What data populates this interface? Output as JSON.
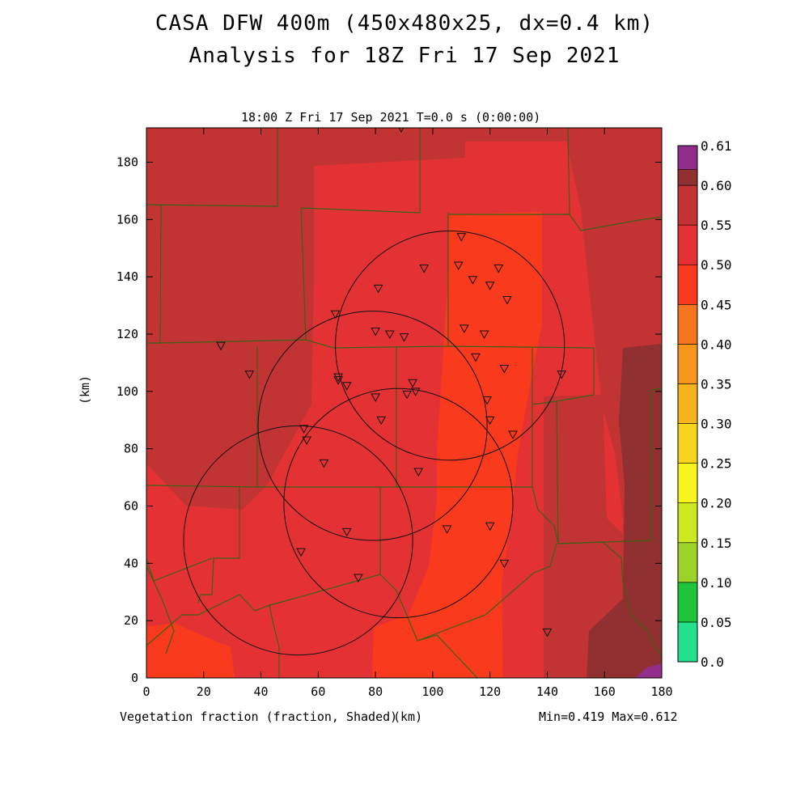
{
  "header": {
    "title_line1": "CASA DFW 400m (450x480x25, dx=0.4 km)",
    "title_line2": "Analysis for 18Z Fri 17 Sep 2021",
    "subtitle": "18:00 Z Fri 17 Sep 2021   T=0.0 s (0:00:00)"
  },
  "footer": {
    "variable_label": "Vegetation fraction (fraction, Shaded)",
    "x_unit": "(km)",
    "minmax": "Min=0.419 Max=0.612"
  },
  "axes": {
    "y_unit": "(km)",
    "x_ticks": [
      "0",
      "20",
      "40",
      "60",
      "80",
      "100",
      "120",
      "140",
      "160",
      "180"
    ],
    "y_ticks": [
      "0",
      "20",
      "40",
      "60",
      "80",
      "100",
      "120",
      "140",
      "160",
      "180"
    ],
    "x_range_km": [
      0,
      180
    ],
    "y_range_km": [
      0,
      192
    ]
  },
  "colorbar": {
    "labels": [
      "0.0",
      "0.05",
      "0.10",
      "0.15",
      "0.20",
      "0.25",
      "0.30",
      "0.35",
      "0.40",
      "0.45",
      "0.50",
      "0.55",
      "0.60",
      "0.61"
    ],
    "colors": [
      "#22e08c",
      "#1ec43c",
      "#9cd22a",
      "#cce820",
      "#f6f61e",
      "#f8d41c",
      "#f6b41c",
      "#f6961c",
      "#f6741e",
      "#fa3a1c",
      "#e43234",
      "#c23434",
      "#903030",
      "#902e8a"
    ]
  },
  "colors": {
    "field_high": "#c23434",
    "field_mid": "#e43234",
    "field_low": "#fa3a1c",
    "field_max": "#903030",
    "county_lines": "#3c6014"
  },
  "radar_circles_km": [
    {
      "cx": 79,
      "cy": 88,
      "r": 40
    },
    {
      "cx": 106,
      "cy": 116,
      "r": 40
    },
    {
      "cx": 53,
      "cy": 48,
      "r": 40
    },
    {
      "cx": 88,
      "cy": 61,
      "r": 40
    }
  ],
  "stations_km": [
    [
      89,
      192
    ],
    [
      110,
      154
    ],
    [
      109,
      144
    ],
    [
      97,
      143
    ],
    [
      114,
      139
    ],
    [
      123,
      143
    ],
    [
      120,
      137
    ],
    [
      81,
      136
    ],
    [
      126,
      132
    ],
    [
      66,
      127
    ],
    [
      80,
      121
    ],
    [
      85,
      120
    ],
    [
      90,
      119
    ],
    [
      111,
      122
    ],
    [
      118,
      120
    ],
    [
      26,
      116
    ],
    [
      115,
      112
    ],
    [
      36,
      106
    ],
    [
      67,
      105
    ],
    [
      67,
      104
    ],
    [
      70,
      102
    ],
    [
      125,
      108
    ],
    [
      145,
      106
    ],
    [
      93,
      103
    ],
    [
      94,
      100
    ],
    [
      91,
      99
    ],
    [
      80,
      98
    ],
    [
      119,
      97
    ],
    [
      82,
      90
    ],
    [
      120,
      90
    ],
    [
      128,
      85
    ],
    [
      55,
      87
    ],
    [
      56,
      83
    ],
    [
      62,
      75
    ],
    [
      95,
      72
    ],
    [
      70,
      51
    ],
    [
      105,
      52
    ],
    [
      120,
      53
    ],
    [
      54,
      44
    ],
    [
      125,
      40
    ],
    [
      74,
      35
    ],
    [
      140,
      16
    ]
  ]
}
